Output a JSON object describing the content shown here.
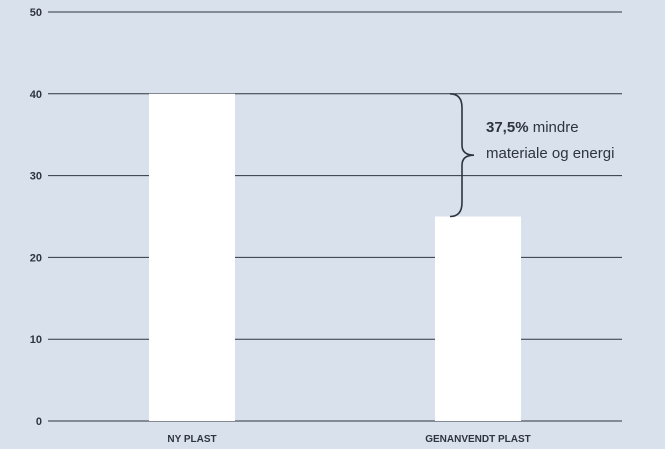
{
  "chart_data": {
    "type": "bar",
    "categories": [
      "NY PLAST",
      "GENANVENDT PLAST"
    ],
    "values": [
      40,
      25
    ],
    "title": "",
    "xlabel": "",
    "ylabel": "",
    "ylim": [
      0,
      50
    ],
    "yticks": [
      "0",
      "10",
      "20",
      "30",
      "40",
      "50"
    ],
    "grid": true,
    "legend": "none",
    "annotation": {
      "bold": "37,5%",
      "rest": " mindre",
      "line2": "materiale og energi",
      "from_value": 40,
      "to_value": 25
    }
  },
  "colors": {
    "background": "#d9e1ec",
    "bar": "#ffffff",
    "grid": "#2e3440",
    "text": "#2e3440"
  }
}
